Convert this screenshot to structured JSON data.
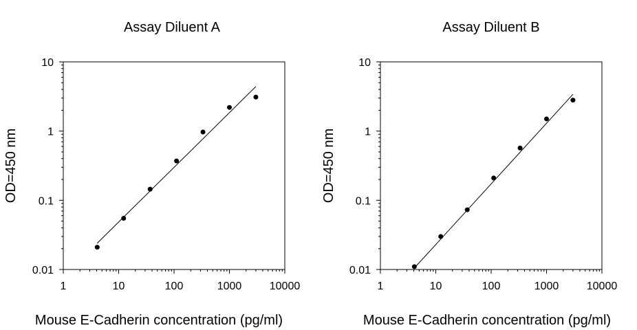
{
  "chart_data": [
    {
      "type": "scatter",
      "title": "Assay Diluent A",
      "xlabel": "Mouse E-Cadherin concentration (pg/ml)",
      "ylabel": "OD=450 nm",
      "xscale": "log",
      "yscale": "log",
      "xlim": [
        1,
        10000
      ],
      "ylim": [
        0.01,
        10
      ],
      "xticks": [
        "1",
        "10",
        "100",
        "1000",
        "10000"
      ],
      "yticks": [
        "0.01",
        "0.1",
        "1",
        "10"
      ],
      "grid": false,
      "points": [
        {
          "x": 4.1,
          "y": 0.021
        },
        {
          "x": 12.3,
          "y": 0.055
        },
        {
          "x": 37,
          "y": 0.145
        },
        {
          "x": 111,
          "y": 0.37
        },
        {
          "x": 333,
          "y": 0.97
        },
        {
          "x": 1000,
          "y": 2.2
        },
        {
          "x": 3000,
          "y": 3.1
        }
      ],
      "fit_line": {
        "x": [
          4.1,
          3000
        ],
        "y": [
          0.024,
          4.4
        ]
      },
      "colors": {
        "points": "#000000",
        "line": "#000000"
      }
    },
    {
      "type": "scatter",
      "title": "Assay Diluent B",
      "xlabel": "Mouse E-Cadherin concentration (pg/ml)",
      "ylabel": "OD=450 nm",
      "xscale": "log",
      "yscale": "log",
      "xlim": [
        1,
        10000
      ],
      "ylim": [
        0.01,
        10
      ],
      "xticks": [
        "1",
        "10",
        "100",
        "1000",
        "10000"
      ],
      "yticks": [
        "0.01",
        "0.1",
        "1",
        "10"
      ],
      "grid": false,
      "points": [
        {
          "x": 4.1,
          "y": 0.011
        },
        {
          "x": 12.3,
          "y": 0.03
        },
        {
          "x": 37,
          "y": 0.073
        },
        {
          "x": 111,
          "y": 0.21
        },
        {
          "x": 333,
          "y": 0.57
        },
        {
          "x": 1000,
          "y": 1.5
        },
        {
          "x": 3000,
          "y": 2.8
        }
      ],
      "fit_line": {
        "x": [
          4.1,
          3000
        ],
        "y": [
          0.0105,
          3.4
        ]
      },
      "colors": {
        "points": "#000000",
        "line": "#000000"
      }
    }
  ]
}
